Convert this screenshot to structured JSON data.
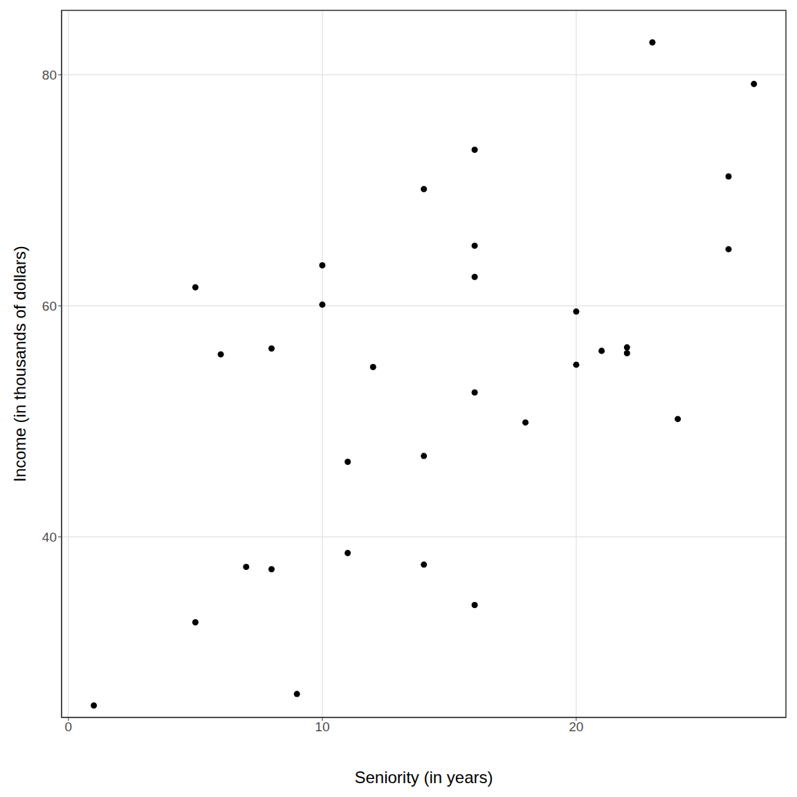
{
  "chart_data": {
    "type": "scatter",
    "x_label": "Seniority (in years)",
    "y_label": "Income (in thousands of dollars)",
    "x": [
      1,
      5,
      5,
      6,
      7,
      8,
      8,
      9,
      10,
      10,
      11,
      11,
      12,
      14,
      14,
      14,
      16,
      16,
      16,
      16,
      16,
      18,
      20,
      20,
      21,
      22,
      22,
      23,
      24,
      26,
      26,
      27
    ],
    "values": [
      25.4,
      61.6,
      32.6,
      55.8,
      37.4,
      56.3,
      37.2,
      26.4,
      63.5,
      60.1,
      46.5,
      38.6,
      54.7,
      70.1,
      47.0,
      37.6,
      73.5,
      65.2,
      62.5,
      52.5,
      34.1,
      49.9,
      59.5,
      54.9,
      56.1,
      56.4,
      55.9,
      82.8,
      50.2,
      71.2,
      64.9,
      79.2
    ],
    "color": "#000000",
    "marker": "circle",
    "xlim": [
      -0.27,
      28.26
    ],
    "ylim": [
      24.37,
      85.57
    ],
    "xticks": [
      0,
      10,
      20
    ],
    "yticks": [
      40,
      60,
      80
    ],
    "grid": true
  }
}
